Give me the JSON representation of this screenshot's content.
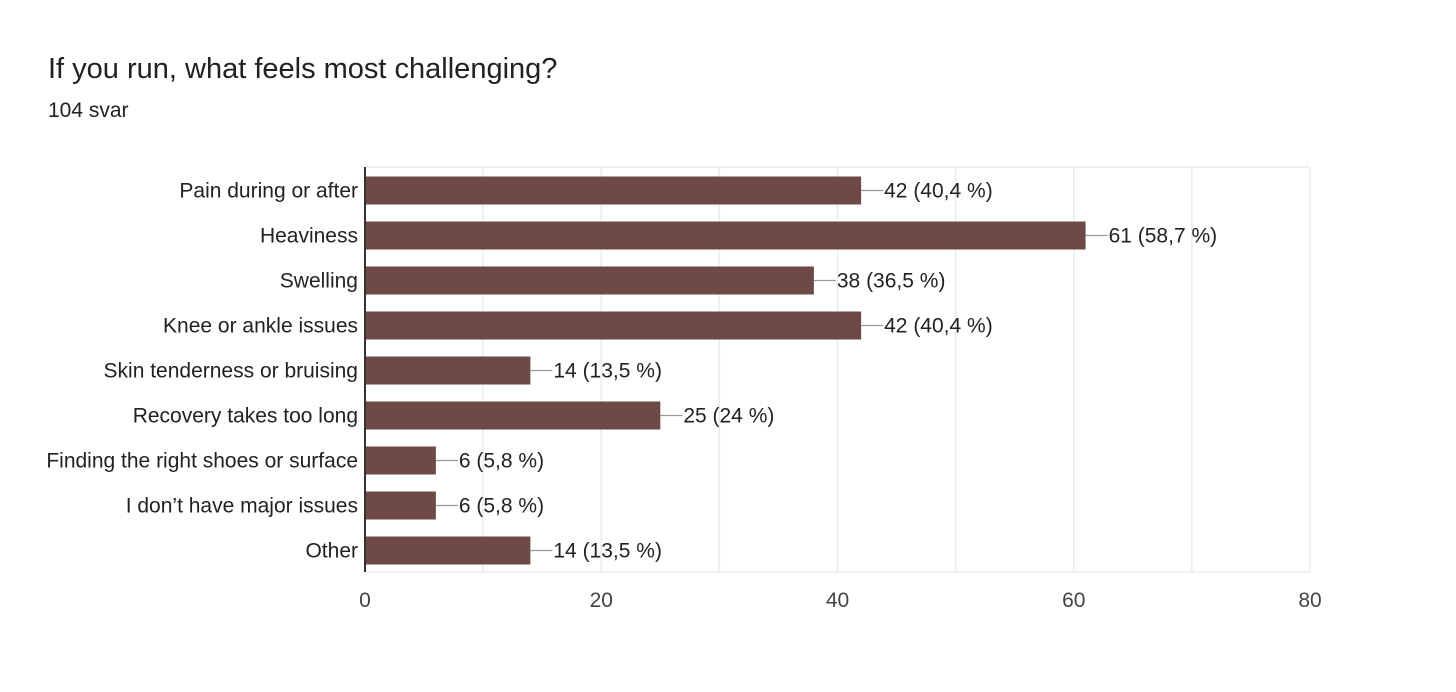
{
  "title": "If you run, what feels most challenging?",
  "response_count": "104 svar",
  "colors": {
    "bar": "#6d4a46",
    "grid": "#ebebeb",
    "axis": "#333333",
    "leader": "#999999"
  },
  "chart_data": {
    "type": "bar",
    "orientation": "horizontal",
    "categories": [
      "Pain during or after",
      "Heaviness",
      "Swelling",
      "Knee or ankle issues",
      "Skin tenderness or bruising",
      "Recovery takes too long",
      "Finding the right shoes or surface",
      "I don’t have major issues",
      "Other"
    ],
    "values": [
      42,
      61,
      38,
      42,
      14,
      25,
      6,
      6,
      14
    ],
    "data_labels": [
      "42 (40,4 %)",
      "61 (58,7 %)",
      "38 (36,5 %)",
      "42 (40,4 %)",
      "14 (13,5 %)",
      "25 (24 %)",
      "6 (5,8 %)",
      "6 (5,8 %)",
      "14 (13,5 %)"
    ],
    "xlim": [
      0,
      80
    ],
    "xticks": [
      "0",
      "20",
      "40",
      "60",
      "80"
    ],
    "grid": true
  }
}
